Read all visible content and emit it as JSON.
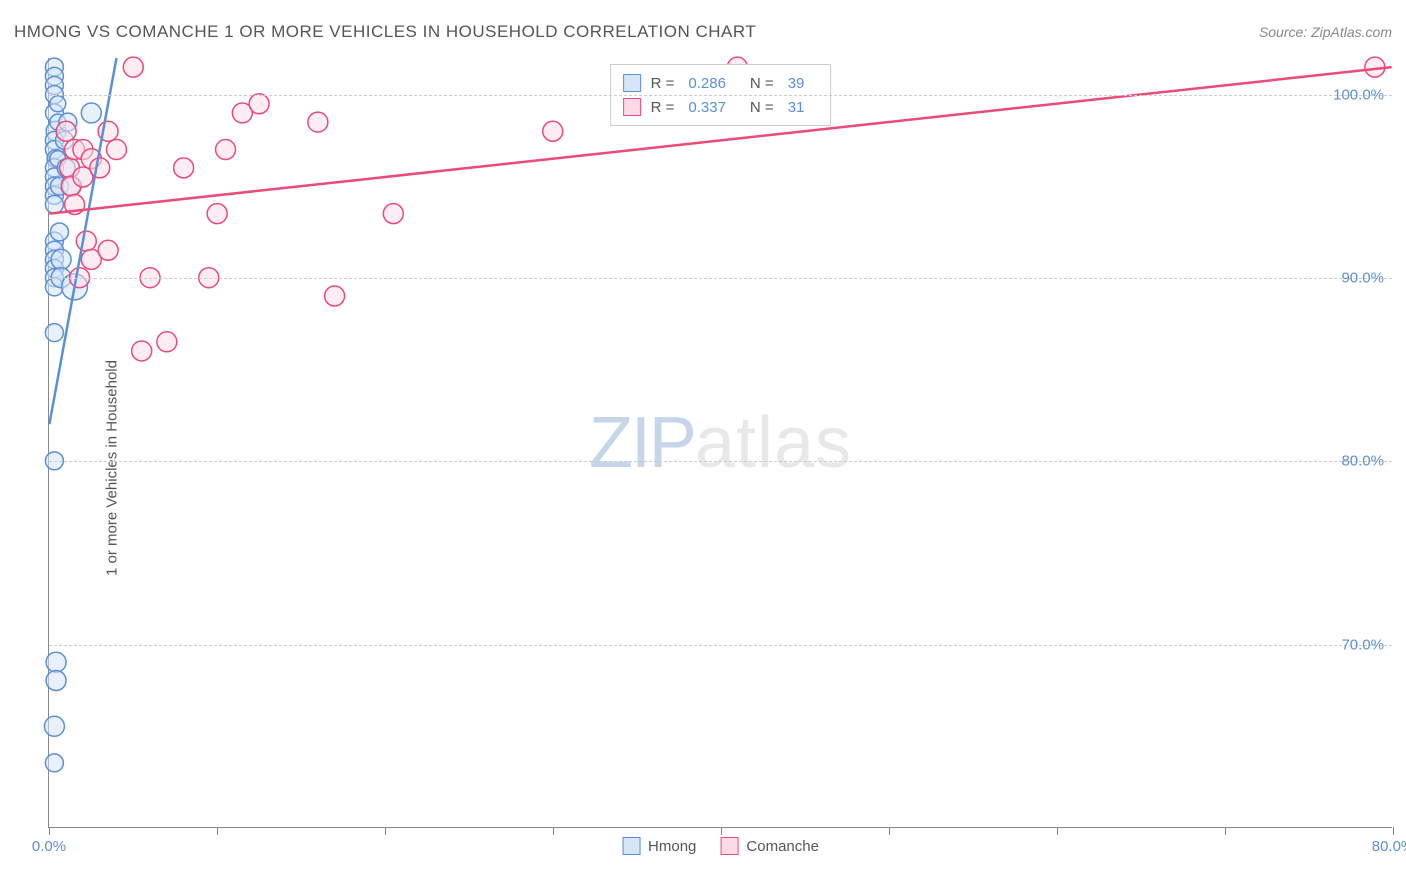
{
  "header": {
    "title": "HMONG VS COMANCHE 1 OR MORE VEHICLES IN HOUSEHOLD CORRELATION CHART",
    "source": "Source: ZipAtlas.com"
  },
  "watermark": {
    "zip": "ZIP",
    "atlas": "atlas"
  },
  "axes": {
    "ylabel": "1 or more Vehicles in Household",
    "xlim": [
      0,
      80
    ],
    "ylim": [
      60,
      102
    ],
    "xticks": [
      0,
      10,
      20,
      30,
      40,
      50,
      60,
      70,
      80
    ],
    "xticklabels": {
      "0": "0.0%",
      "80": "80.0%"
    },
    "yticks": [
      70,
      80,
      90,
      100
    ],
    "yticklabels": {
      "70": "70.0%",
      "80": "80.0%",
      "90": "90.0%",
      "100": "100.0%"
    },
    "grid_color": "#cccccc",
    "axis_color": "#888888",
    "tick_label_color": "#5b8fd6"
  },
  "series": {
    "hmong": {
      "label": "Hmong",
      "fill": "#d6e5f7",
      "stroke": "#5b8fd6",
      "fill_opacity": 0.55,
      "marker_radius": 10,
      "r_value": "0.286",
      "n_value": "39",
      "regression": {
        "x1": 0,
        "y1": 82,
        "x2": 4,
        "y2": 102
      },
      "points": [
        {
          "x": 0.3,
          "y": 101.5,
          "r": 9
        },
        {
          "x": 0.3,
          "y": 101.0,
          "r": 9
        },
        {
          "x": 0.3,
          "y": 100.5,
          "r": 9
        },
        {
          "x": 0.3,
          "y": 100.0,
          "r": 9
        },
        {
          "x": 0.3,
          "y": 99.0,
          "r": 9
        },
        {
          "x": 0.4,
          "y": 98.0,
          "r": 10
        },
        {
          "x": 0.3,
          "y": 97.5,
          "r": 9
        },
        {
          "x": 0.3,
          "y": 97.0,
          "r": 9
        },
        {
          "x": 0.4,
          "y": 96.5,
          "r": 9
        },
        {
          "x": 0.3,
          "y": 96.0,
          "r": 9
        },
        {
          "x": 0.3,
          "y": 95.5,
          "r": 9
        },
        {
          "x": 0.3,
          "y": 95.0,
          "r": 9
        },
        {
          "x": 0.3,
          "y": 94.5,
          "r": 9
        },
        {
          "x": 0.3,
          "y": 94.0,
          "r": 9
        },
        {
          "x": 0.3,
          "y": 92.0,
          "r": 9
        },
        {
          "x": 0.3,
          "y": 91.5,
          "r": 9
        },
        {
          "x": 0.3,
          "y": 91.0,
          "r": 9
        },
        {
          "x": 0.3,
          "y": 90.5,
          "r": 9
        },
        {
          "x": 0.3,
          "y": 90.0,
          "r": 9
        },
        {
          "x": 0.3,
          "y": 89.5,
          "r": 9
        },
        {
          "x": 0.3,
          "y": 87.0,
          "r": 9
        },
        {
          "x": 0.3,
          "y": 80.0,
          "r": 9
        },
        {
          "x": 0.4,
          "y": 69.0,
          "r": 10
        },
        {
          "x": 0.4,
          "y": 68.0,
          "r": 10
        },
        {
          "x": 0.3,
          "y": 65.5,
          "r": 10
        },
        {
          "x": 0.3,
          "y": 63.5,
          "r": 9
        },
        {
          "x": 0.5,
          "y": 99.5,
          "r": 8
        },
        {
          "x": 0.5,
          "y": 98.5,
          "r": 8
        },
        {
          "x": 0.5,
          "y": 96.5,
          "r": 8
        },
        {
          "x": 0.6,
          "y": 95.0,
          "r": 9
        },
        {
          "x": 0.6,
          "y": 92.5,
          "r": 9
        },
        {
          "x": 0.7,
          "y": 91.0,
          "r": 10
        },
        {
          "x": 0.7,
          "y": 90.0,
          "r": 10
        },
        {
          "x": 0.9,
          "y": 97.5,
          "r": 9
        },
        {
          "x": 1.0,
          "y": 96.0,
          "r": 9
        },
        {
          "x": 1.1,
          "y": 98.5,
          "r": 9
        },
        {
          "x": 1.3,
          "y": 95.0,
          "r": 9
        },
        {
          "x": 1.5,
          "y": 89.5,
          "r": 13
        },
        {
          "x": 2.5,
          "y": 99.0,
          "r": 10
        }
      ]
    },
    "comanche": {
      "label": "Comanche",
      "fill": "#fbdce6",
      "stroke": "#e94b7a",
      "fill_opacity": 0.55,
      "marker_radius": 10,
      "r_value": "0.337",
      "n_value": "31",
      "regression": {
        "x1": 0,
        "y1": 93.5,
        "x2": 80,
        "y2": 101.5
      },
      "points": [
        {
          "x": 1.0,
          "y": 98.0,
          "r": 10
        },
        {
          "x": 1.2,
          "y": 96.0,
          "r": 10
        },
        {
          "x": 1.3,
          "y": 95.0,
          "r": 10
        },
        {
          "x": 1.5,
          "y": 97.0,
          "r": 10
        },
        {
          "x": 1.5,
          "y": 94.0,
          "r": 10
        },
        {
          "x": 1.8,
          "y": 90.0,
          "r": 10
        },
        {
          "x": 2.0,
          "y": 97.0,
          "r": 10
        },
        {
          "x": 2.0,
          "y": 95.5,
          "r": 10
        },
        {
          "x": 2.2,
          "y": 92.0,
          "r": 10
        },
        {
          "x": 2.5,
          "y": 96.5,
          "r": 10
        },
        {
          "x": 2.5,
          "y": 91.0,
          "r": 10
        },
        {
          "x": 3.0,
          "y": 96.0,
          "r": 10
        },
        {
          "x": 3.5,
          "y": 98.0,
          "r": 10
        },
        {
          "x": 3.5,
          "y": 91.5,
          "r": 10
        },
        {
          "x": 4.0,
          "y": 97.0,
          "r": 10
        },
        {
          "x": 5.0,
          "y": 101.5,
          "r": 10
        },
        {
          "x": 5.5,
          "y": 86.0,
          "r": 10
        },
        {
          "x": 6.0,
          "y": 90.0,
          "r": 10
        },
        {
          "x": 7.0,
          "y": 86.5,
          "r": 10
        },
        {
          "x": 8.0,
          "y": 96.0,
          "r": 10
        },
        {
          "x": 9.5,
          "y": 90.0,
          "r": 10
        },
        {
          "x": 10.0,
          "y": 93.5,
          "r": 10
        },
        {
          "x": 10.5,
          "y": 97.0,
          "r": 10
        },
        {
          "x": 11.5,
          "y": 99.0,
          "r": 10
        },
        {
          "x": 12.5,
          "y": 99.5,
          "r": 10
        },
        {
          "x": 16.0,
          "y": 98.5,
          "r": 10
        },
        {
          "x": 17.0,
          "y": 89.0,
          "r": 10
        },
        {
          "x": 20.5,
          "y": 93.5,
          "r": 10
        },
        {
          "x": 30.0,
          "y": 98.0,
          "r": 10
        },
        {
          "x": 41.0,
          "y": 101.5,
          "r": 10
        },
        {
          "x": 79.0,
          "y": 101.5,
          "r": 10
        }
      ]
    }
  },
  "legend": {
    "r_label": "R =",
    "n_label": "N ="
  },
  "styling": {
    "background_color": "#ffffff",
    "title_color": "#555555",
    "title_fontsize": 17,
    "source_fontsize": 14,
    "regression_line_width": 2.5
  }
}
